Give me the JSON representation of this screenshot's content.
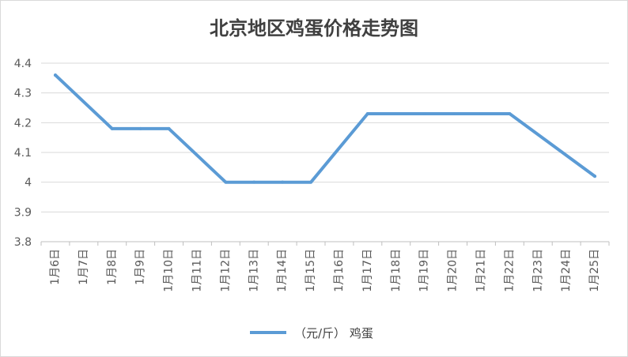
{
  "chart_data": {
    "type": "line",
    "title": "北京地区鸡蛋价格走势图",
    "categories": [
      "1月6日",
      "1月7日",
      "1月8日",
      "1月9日",
      "1月10日",
      "1月11日",
      "1月12日",
      "1月13日",
      "1月14日",
      "1月15日",
      "1月16日",
      "1月17日",
      "1月18日",
      "1月19日",
      "1月20日",
      "1月21日",
      "1月22日",
      "1月23日",
      "1月24日",
      "1月25日"
    ],
    "series": [
      {
        "name": "（元/斤） 鸡蛋",
        "color": "#5b9bd5",
        "values": [
          4.36,
          null,
          4.18,
          4.18,
          4.18,
          null,
          4.0,
          4.0,
          4.0,
          4.0,
          null,
          4.23,
          4.23,
          4.23,
          4.23,
          4.23,
          4.23,
          null,
          null,
          4.02
        ]
      }
    ],
    "ylim": [
      3.8,
      4.4
    ],
    "yticks": [
      "3.8",
      "3.9",
      "4",
      "4.1",
      "4.2",
      "4.3",
      "4.4"
    ],
    "grid": true,
    "legend_position": "bottom"
  }
}
